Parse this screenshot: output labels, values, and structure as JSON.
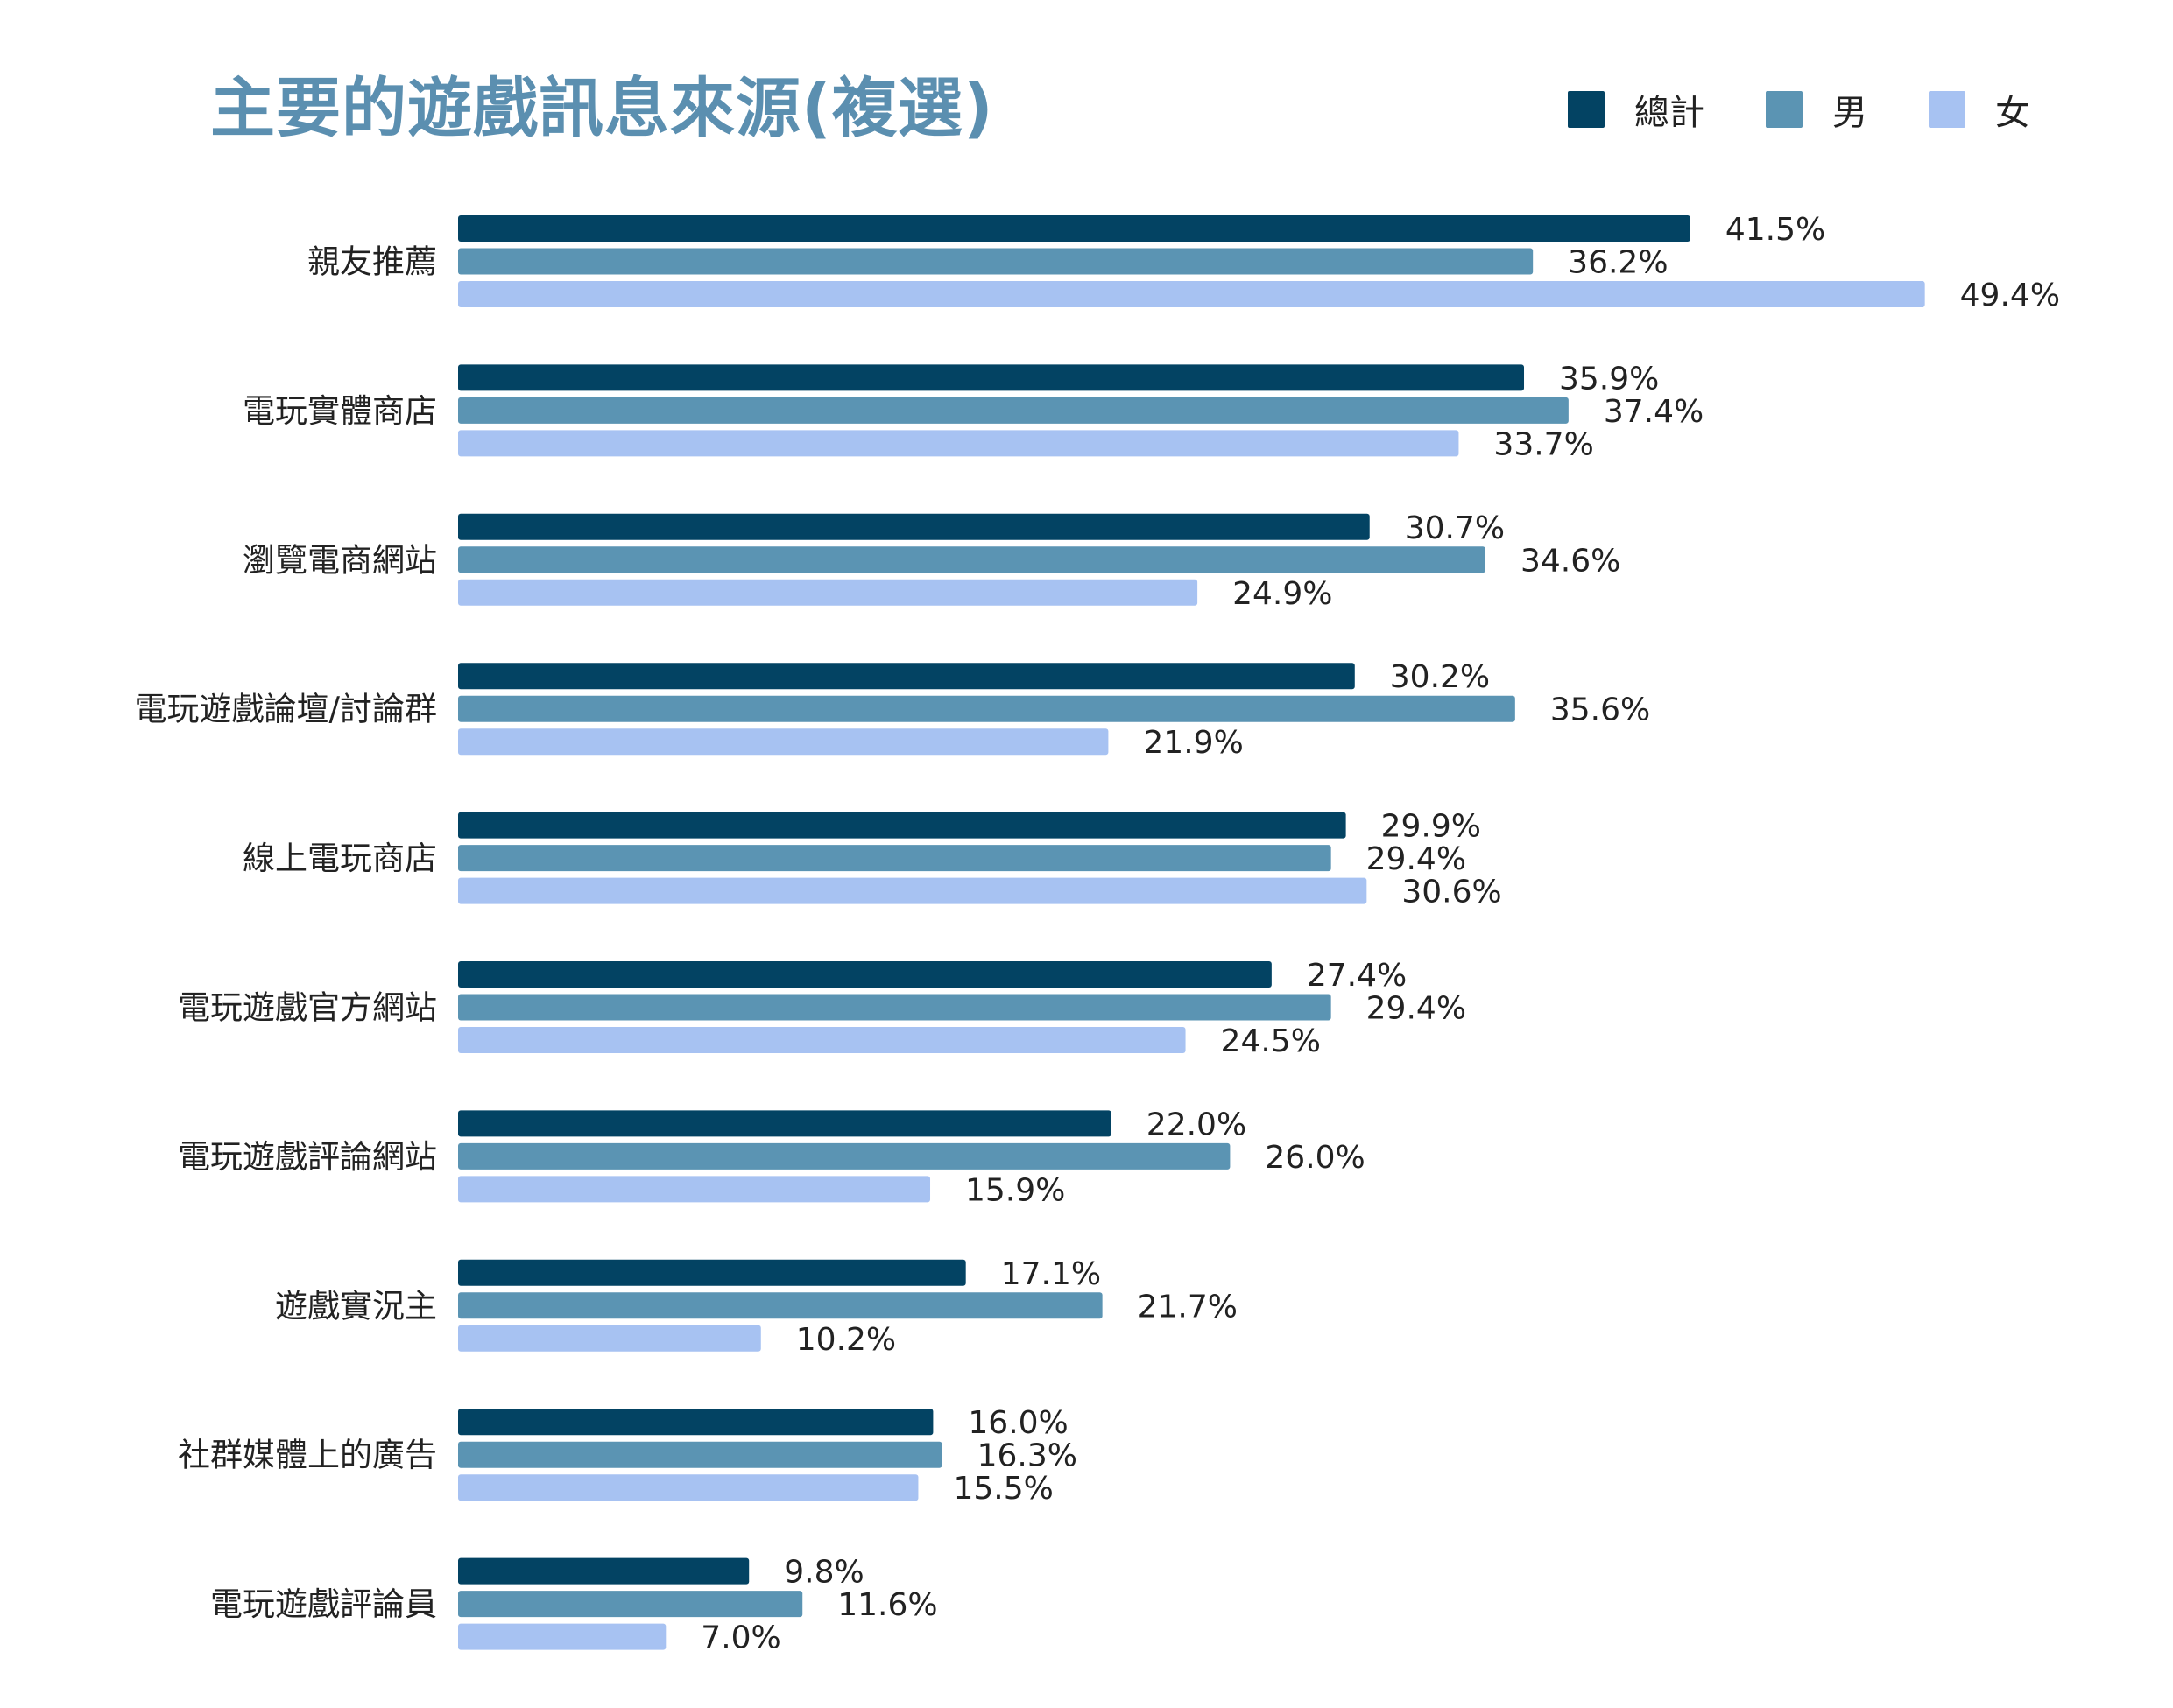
{
  "title": "主要的遊戲訊息來源(複選)",
  "colors": {
    "總計": "#034363",
    "男": "#5b94b3",
    "女": "#a7c2f2"
  },
  "legend": [
    {
      "label": "總計",
      "color": "#034363"
    },
    {
      "label": "男",
      "color": "#5b94b3"
    },
    {
      "label": "女",
      "color": "#a7c2f2"
    }
  ],
  "chart_data": {
    "type": "bar",
    "orientation": "horizontal",
    "title": "主要的遊戲訊息來源(複選)",
    "xlabel": "",
    "ylabel": "",
    "categories": [
      "親友推薦",
      "電玩實體商店",
      "瀏覽電商網站",
      "電玩遊戲論壇/討論群",
      "線上電玩商店",
      "電玩遊戲官方網站",
      "電玩遊戲評論網站",
      "遊戲實況主",
      "社群媒體上的廣告",
      "電玩遊戲評論員"
    ],
    "series": [
      {
        "name": "總計",
        "color": "#034363",
        "values": [
          41.5,
          35.9,
          30.7,
          30.2,
          29.9,
          27.4,
          22.0,
          17.1,
          16.0,
          9.8
        ],
        "labels": [
          "41.5%",
          "35.9%",
          "30.7%",
          "30.2%",
          "29.9%",
          "27.4%",
          "22.0%",
          "17.1%",
          "16.0%",
          "9.8%"
        ]
      },
      {
        "name": "男",
        "color": "#5b94b3",
        "values": [
          36.2,
          37.4,
          34.6,
          35.6,
          29.4,
          29.4,
          26.0,
          21.7,
          16.3,
          11.6
        ],
        "labels": [
          "36.2%",
          "37.4%",
          "34.6%",
          "35.6%",
          "29.4%",
          "29.4%",
          "26.0%",
          "21.7%",
          "16.3%",
          "11.6%"
        ]
      },
      {
        "name": "女",
        "color": "#a7c2f2",
        "values": [
          49.4,
          33.7,
          24.9,
          21.9,
          30.6,
          24.5,
          15.9,
          10.2,
          15.5,
          7.0
        ],
        "labels": [
          "49.4%",
          "33.7%",
          "24.9%",
          "21.9%",
          "30.6%",
          "24.5%",
          "15.9%",
          "10.2%",
          "15.5%",
          "7.0%"
        ]
      }
    ],
    "xlim": [
      0,
      49.4
    ],
    "grid": false,
    "legend_position": "top-right"
  }
}
